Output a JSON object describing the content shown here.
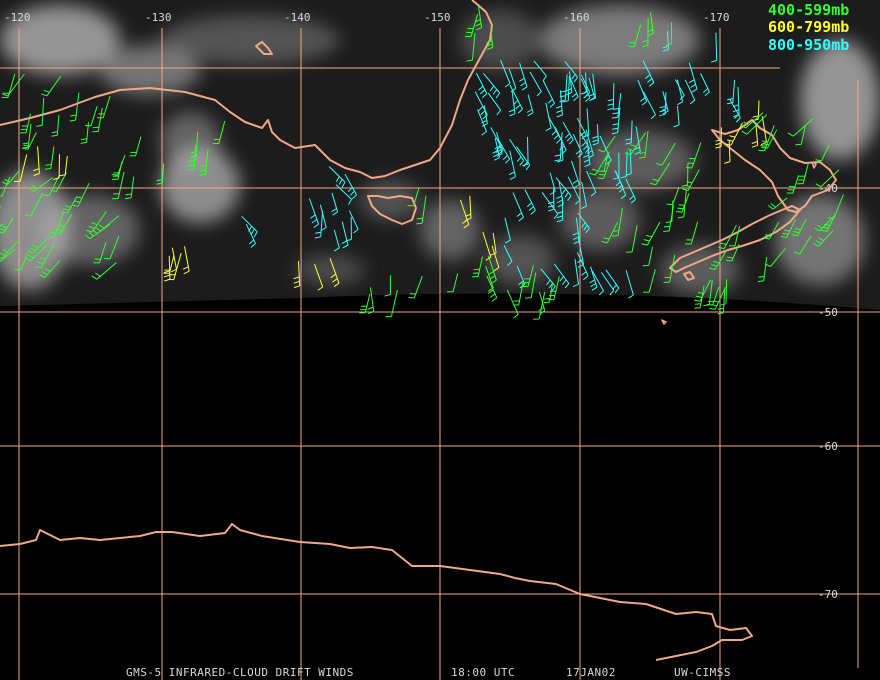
{
  "colors": {
    "background": "#000000",
    "grid": "#f0a888",
    "coast": "#f0a888",
    "cloud": "#c8c8c8",
    "label": "#d8d8d8"
  },
  "grid": {
    "longitudes": [
      "-120",
      "-130",
      "-140",
      "-150",
      "-160",
      "-170"
    ],
    "latitudes": [
      "-40",
      "-50",
      "-60",
      "-70"
    ]
  },
  "legend": [
    {
      "label": "400-599mb",
      "color": "#33ff33"
    },
    {
      "label": "600-799mb",
      "color": "#ffff33"
    },
    {
      "label": "800-950mb",
      "color": "#33ffff"
    }
  ],
  "footer": {
    "satellite": "GMS-5 INFRARED-CLOUD DRIFT WINDS",
    "time": "18:00 UTC",
    "date": "17JAN02",
    "source": "UW-CIMSS"
  },
  "wind_layers": [
    {
      "level": "400-599mb",
      "color": "#33ff33"
    },
    {
      "level": "600-799mb",
      "color": "#ffff33"
    },
    {
      "level": "800-950mb",
      "color": "#33ffff"
    }
  ]
}
